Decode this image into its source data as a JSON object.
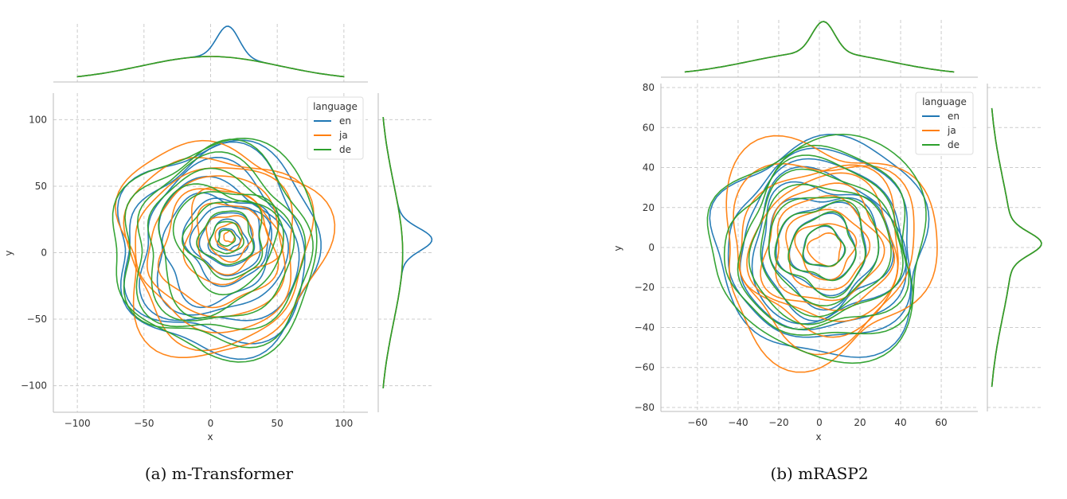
{
  "chart_data": [
    {
      "type": "kde-contour",
      "caption": "(a) m-Transformer",
      "xlabel": "x",
      "ylabel": "y",
      "xlim": [
        -118,
        118
      ],
      "ylim": [
        -120,
        120
      ],
      "xticks": [
        -100,
        -50,
        0,
        50,
        100
      ],
      "yticks": [
        -100,
        -50,
        0,
        50,
        100
      ],
      "grid": true,
      "legend": {
        "title": "language",
        "placement": "top-right"
      },
      "series": [
        {
          "name": "en",
          "color": "#1f77b4",
          "center": [
            13,
            10
          ],
          "radii": [
            8,
            14,
            20,
            26,
            32,
            40,
            50,
            60,
            70,
            78
          ],
          "marginal_x_peak": 13,
          "marginal_y_peak": 10
        },
        {
          "name": "ja",
          "color": "#ff7f0e",
          "center": [
            14,
            12
          ],
          "radii": [
            4,
            10,
            17,
            26,
            35,
            44,
            53,
            62,
            71,
            79
          ],
          "marginal_x_peak": 0,
          "marginal_y_peak": 0
        },
        {
          "name": "de",
          "color": "#2ca02c",
          "center": [
            12,
            11
          ],
          "radii": [
            6,
            12,
            20,
            29,
            38,
            47,
            56,
            65,
            73,
            80
          ],
          "marginal_x_peak": 0,
          "marginal_y_peak": 0
        }
      ]
    },
    {
      "type": "kde-contour",
      "caption": "(b) mRASP2",
      "xlabel": "x",
      "ylabel": "y",
      "xlim": [
        -78,
        78
      ],
      "ylim": [
        -82,
        82
      ],
      "xticks": [
        -60,
        -40,
        -20,
        0,
        20,
        40,
        60
      ],
      "yticks": [
        -80,
        -60,
        -40,
        -20,
        0,
        20,
        40,
        60,
        80
      ],
      "grid": true,
      "legend": {
        "title": "language",
        "placement": "top-right"
      },
      "series": [
        {
          "name": "en",
          "color": "#1f77b4",
          "center": [
            2,
            0
          ],
          "radii": [
            10,
            16,
            22,
            27,
            32,
            37,
            42,
            47,
            54
          ],
          "marginal_x_peak": 2,
          "marginal_y_peak": 2
        },
        {
          "name": "ja",
          "color": "#ff7f0e",
          "center": [
            3,
            -1
          ],
          "radii": [
            8,
            14,
            20,
            26,
            31,
            36,
            41,
            46,
            54
          ],
          "marginal_x_peak": 2,
          "marginal_y_peak": 2
        },
        {
          "name": "de",
          "color": "#2ca02c",
          "center": [
            2,
            0
          ],
          "radii": [
            10,
            16,
            22,
            27,
            32,
            37,
            42,
            47,
            55
          ],
          "marginal_x_peak": 2,
          "marginal_y_peak": 2
        }
      ]
    }
  ]
}
